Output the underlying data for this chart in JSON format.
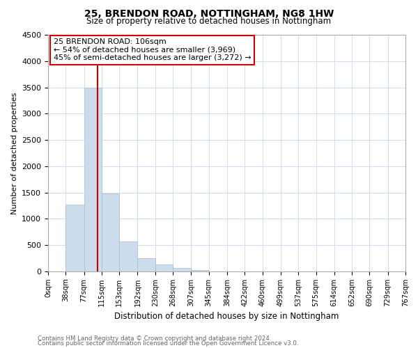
{
  "title": "25, BRENDON ROAD, NOTTINGHAM, NG8 1HW",
  "subtitle": "Size of property relative to detached houses in Nottingham",
  "xlabel": "Distribution of detached houses by size in Nottingham",
  "ylabel": "Number of detached properties",
  "bar_edges": [
    0,
    38,
    77,
    115,
    153,
    192,
    230,
    268,
    307,
    345,
    384,
    422,
    460,
    499,
    537,
    575,
    614,
    652,
    690,
    729,
    767
  ],
  "bar_heights": [
    0,
    1270,
    3500,
    1480,
    575,
    245,
    130,
    65,
    20,
    5,
    2,
    0,
    0,
    0,
    0,
    0,
    0,
    0,
    0,
    0
  ],
  "bar_color": "#ccdcec",
  "bar_edgecolor": "#aabccc",
  "vline_x": 106,
  "vline_color": "#cc0000",
  "ylim": [
    0,
    4500
  ],
  "yticks": [
    0,
    500,
    1000,
    1500,
    2000,
    2500,
    3000,
    3500,
    4000,
    4500
  ],
  "annotation_title": "25 BRENDON ROAD: 106sqm",
  "annotation_line1": "← 54% of detached houses are smaller (3,969)",
  "annotation_line2": "45% of semi-detached houses are larger (3,272) →",
  "footer_line1": "Contains HM Land Registry data © Crown copyright and database right 2024.",
  "footer_line2": "Contains public sector information licensed under the Open Government Licence v3.0.",
  "tick_labels": [
    "0sqm",
    "38sqm",
    "77sqm",
    "115sqm",
    "153sqm",
    "192sqm",
    "230sqm",
    "268sqm",
    "307sqm",
    "345sqm",
    "384sqm",
    "422sqm",
    "460sqm",
    "499sqm",
    "537sqm",
    "575sqm",
    "614sqm",
    "652sqm",
    "690sqm",
    "729sqm",
    "767sqm"
  ],
  "background_color": "#ffffff",
  "grid_color": "#d0dcea"
}
